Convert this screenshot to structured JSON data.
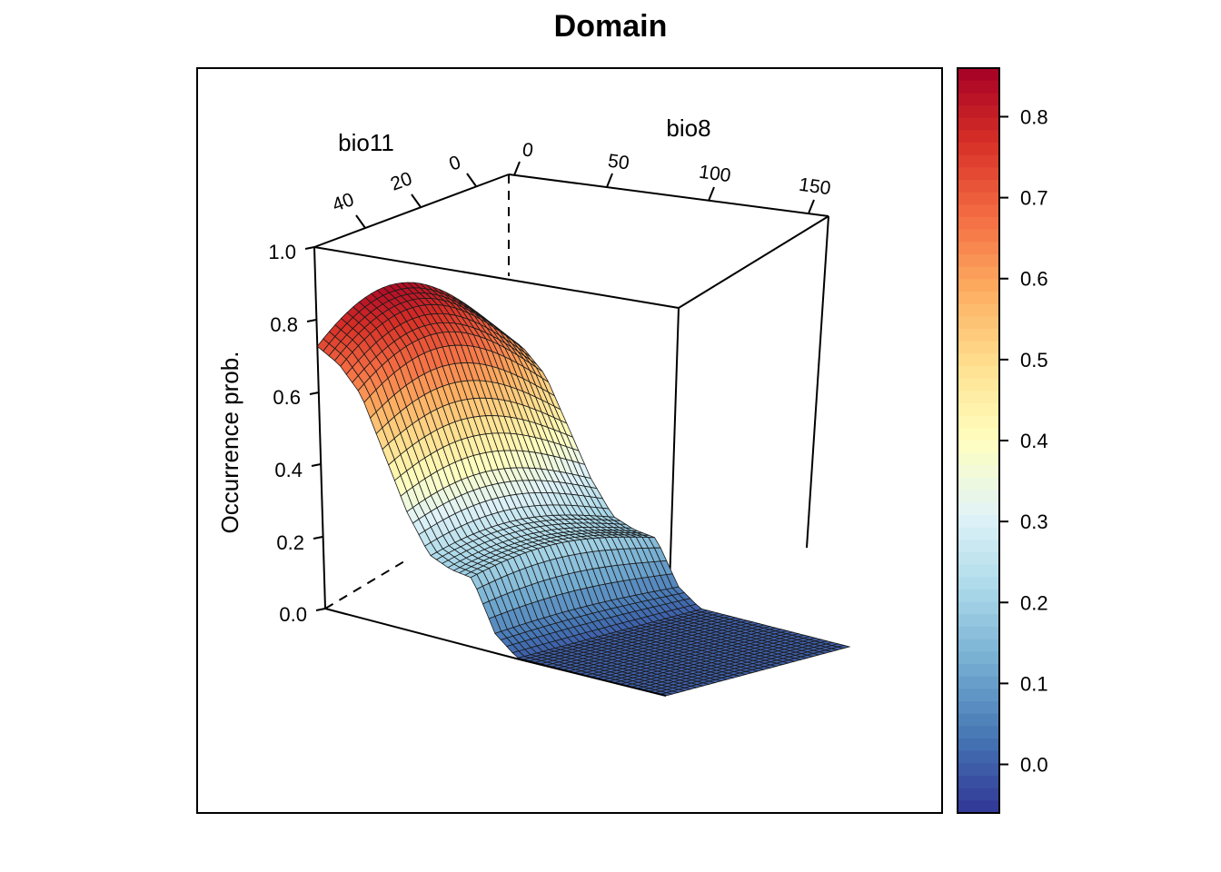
{
  "chart_data": {
    "type": "surface",
    "title": "Domain",
    "zlabel": "Occurrence prob.",
    "xlabel": "bio11",
    "ylabel": "bio8",
    "x_ticks": [
      0,
      20,
      40
    ],
    "y_ticks": [
      0,
      50,
      100,
      150
    ],
    "z_ticks": [
      "0.0",
      "0.2",
      "0.4",
      "0.6",
      "0.8",
      "1.0"
    ],
    "zlim": [
      0,
      1
    ],
    "colorbar": {
      "ticks": [
        "0.0",
        "0.1",
        "0.2",
        "0.3",
        "0.4",
        "0.5",
        "0.6",
        "0.7",
        "0.8"
      ],
      "range": [
        -0.06,
        0.86
      ],
      "palette": [
        "#313695",
        "#4575b4",
        "#74add1",
        "#abd9e9",
        "#e0f3f8",
        "#ffffbf",
        "#fee090",
        "#fdae61",
        "#f46d43",
        "#d73027",
        "#a50026"
      ]
    },
    "surface_profile": {
      "y": [
        0,
        10,
        20,
        30,
        40,
        50,
        60,
        70,
        80,
        90,
        100,
        110,
        120,
        130,
        140,
        150,
        160
      ],
      "z": [
        0.84,
        0.8,
        0.72,
        0.55,
        0.38,
        0.26,
        0.23,
        0.22,
        0.06,
        0.0,
        0.0,
        0.0,
        0.0,
        0.0,
        0.0,
        0.0,
        0.0
      ]
    }
  }
}
